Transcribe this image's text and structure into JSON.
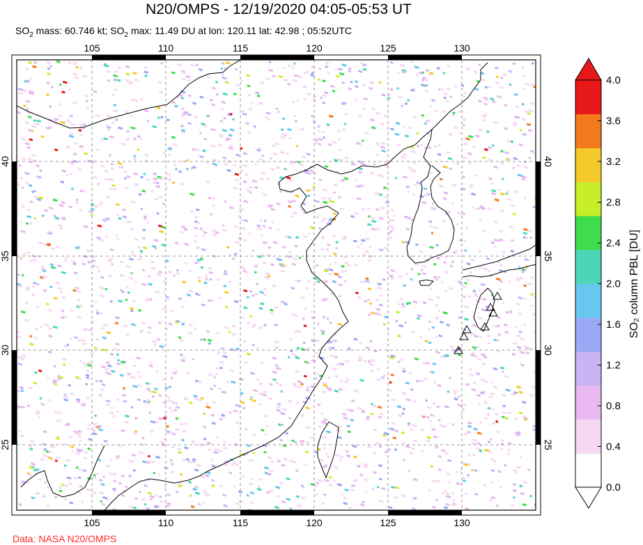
{
  "header": {
    "title": "N20/OMPS - 12/19/2020 04:05-05:53 UT",
    "subtitle_parts": {
      "so": "SO",
      "sub2": "2",
      "mass_text": " mass: 60.746 kt; ",
      "so_b": "SO",
      "sub2_b": "2",
      "max_text": " max: 11.49 DU at lon: 120.11 lat: 42.98 ; 05:52UTC"
    }
  },
  "map": {
    "lon_ticks": [
      "105",
      "110",
      "115",
      "120",
      "125",
      "130"
    ],
    "lat_ticks": [
      "25",
      "30",
      "35",
      "40"
    ],
    "volcano_icon": "triangle-icon"
  },
  "colorbar": {
    "label": "SO₂ column PBL [DU]",
    "ticks": [
      "0.0",
      "0.4",
      "0.8",
      "1.2",
      "1.6",
      "2.0",
      "2.4",
      "2.8",
      "3.2",
      "3.6",
      "4.0"
    ],
    "colors": [
      "#ffffff",
      "#f6d8f2",
      "#e9b8f0",
      "#c9b5f5",
      "#9ba8f5",
      "#68c7ee",
      "#4bd7b7",
      "#3fdc4e",
      "#c8ee2a",
      "#f6c92b",
      "#f27a1c",
      "#e81818"
    ]
  },
  "footer": {
    "credit": "Data: NASA N20/OMPS"
  }
}
